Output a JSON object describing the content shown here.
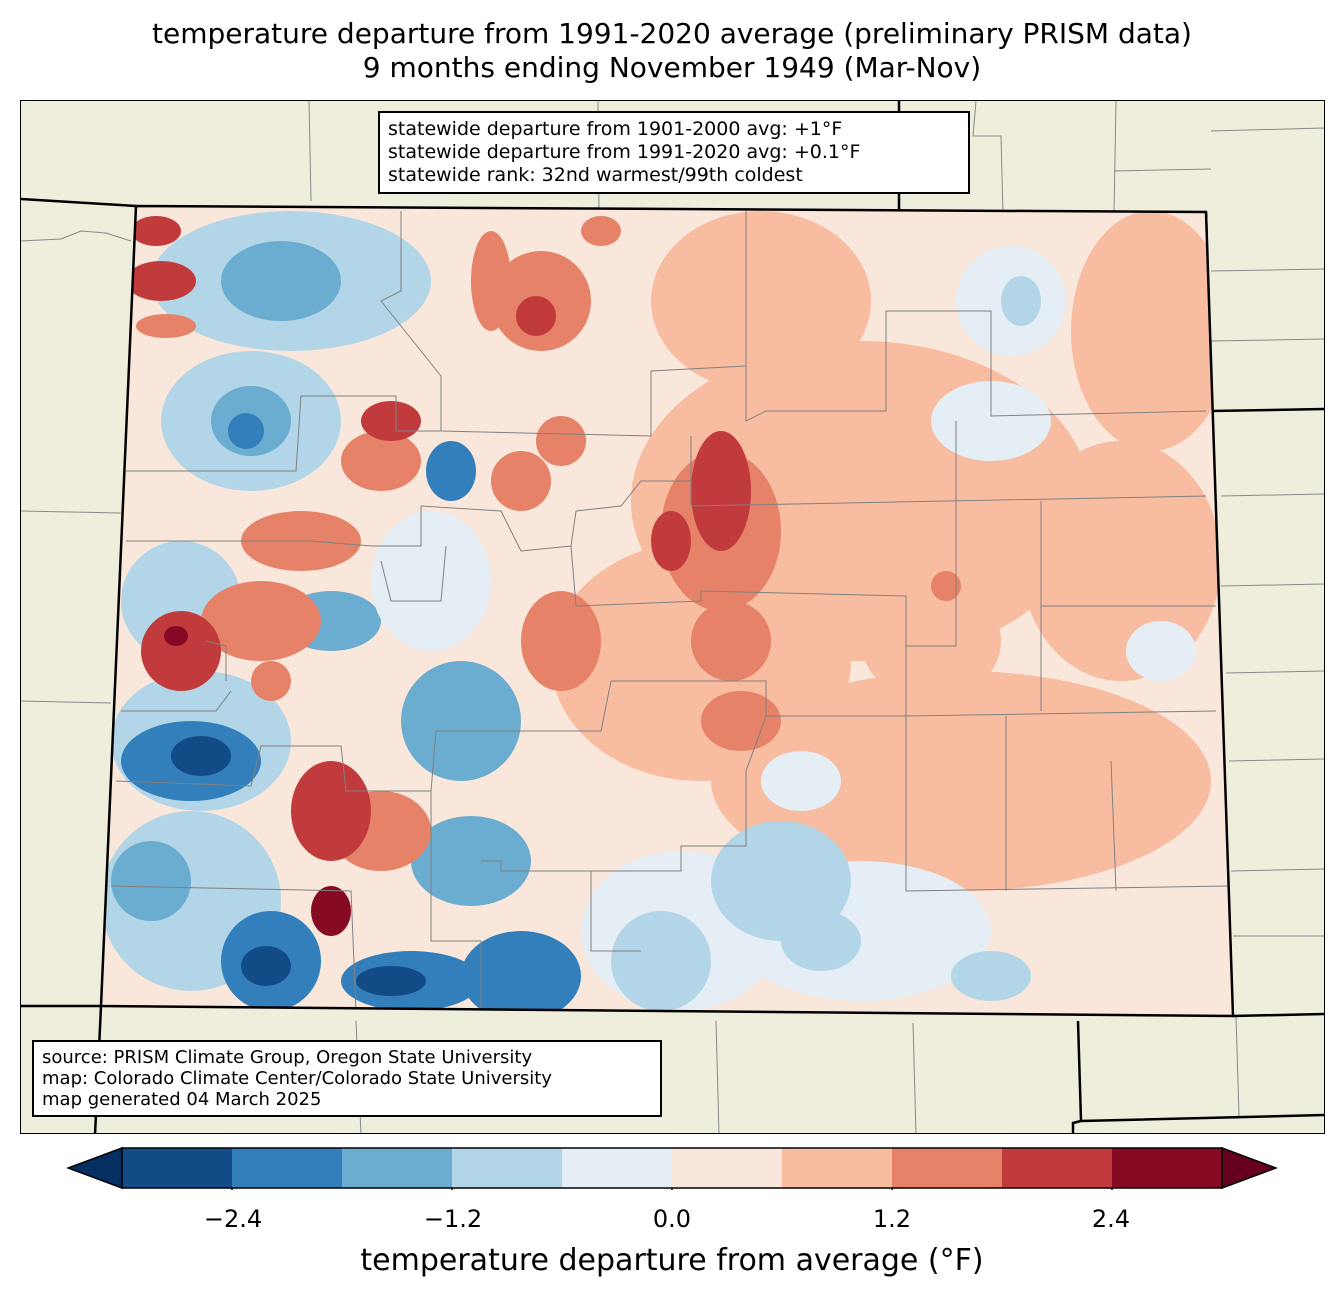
{
  "title": {
    "line1": "temperature departure from 1991-2020 average (preliminary PRISM data)",
    "line2": "9 months ending November 1949 (Mar-Nov)"
  },
  "stats_box": {
    "line1": "statewide departure from 1901-2000 avg: +1°F",
    "line2": "statewide departure from 1991-2020 avg: +0.1°F",
    "line3": "statewide rank: 32nd warmest/99th coldest"
  },
  "source_box": {
    "line1": "source: PRISM Climate Group, Oregon State University",
    "line2": "map: Colorado Climate Center/Colorado State University",
    "line3": "map generated 04 March 2025"
  },
  "colorbar": {
    "label": "temperature departure from average (°F)",
    "ticks": [
      "−2.4",
      "−1.2",
      "0.0",
      "1.2",
      "2.4"
    ],
    "bounds": [
      -3.0,
      -2.4,
      -1.8,
      -1.2,
      -0.6,
      0.0,
      0.6,
      1.2,
      1.8,
      2.4,
      3.0
    ],
    "colors": [
      "#134b87",
      "#327fbb",
      "#6bacd1",
      "#b2d5e7",
      "#e4eef4",
      "#fae7dc",
      "#f8bca1",
      "#e58268",
      "#c13b3c",
      "#870a24"
    ],
    "extend_low_color": "#053061",
    "extend_high_color": "#67001f"
  }
}
